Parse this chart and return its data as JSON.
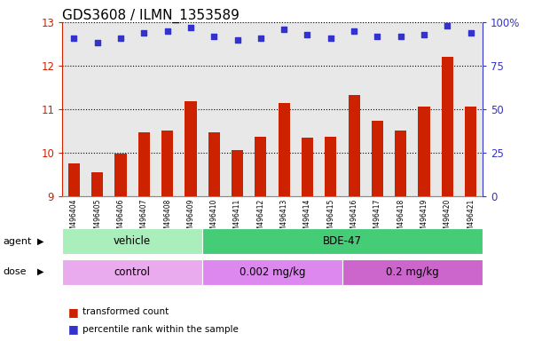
{
  "title": "GDS3608 / ILMN_1353589",
  "samples": [
    "GSM496404",
    "GSM496405",
    "GSM496406",
    "GSM496407",
    "GSM496408",
    "GSM496409",
    "GSM496410",
    "GSM496411",
    "GSM496412",
    "GSM496413",
    "GSM496414",
    "GSM496415",
    "GSM496416",
    "GSM496417",
    "GSM496418",
    "GSM496419",
    "GSM496420",
    "GSM496421"
  ],
  "bar_values": [
    9.75,
    9.55,
    9.98,
    10.47,
    10.5,
    11.18,
    10.47,
    10.05,
    10.37,
    11.15,
    10.35,
    10.37,
    11.32,
    10.73,
    10.5,
    11.05,
    12.2,
    11.05
  ],
  "percentile_values": [
    91,
    88,
    91,
    94,
    95,
    97,
    92,
    90,
    91,
    96,
    93,
    91,
    95,
    92,
    92,
    93,
    98,
    94
  ],
  "ylim_left": [
    9,
    13
  ],
  "ylim_right": [
    0,
    100
  ],
  "yticks_left": [
    9,
    10,
    11,
    12,
    13
  ],
  "yticks_right": [
    0,
    25,
    50,
    75,
    100
  ],
  "bar_color": "#CC2200",
  "dot_color": "#3333CC",
  "agent_groups": [
    {
      "label": "vehicle",
      "start": 0,
      "end": 6,
      "color": "#AAEEBB"
    },
    {
      "label": "BDE-47",
      "start": 6,
      "end": 18,
      "color": "#44CC77"
    }
  ],
  "dose_groups": [
    {
      "label": "control",
      "start": 0,
      "end": 6,
      "color": "#EAAAEE"
    },
    {
      "label": "0.002 mg/kg",
      "start": 6,
      "end": 12,
      "color": "#DD88EE"
    },
    {
      "label": "0.2 mg/kg",
      "start": 12,
      "end": 18,
      "color": "#CC66CC"
    }
  ],
  "legend_items": [
    {
      "label": "transformed count",
      "color": "#CC2200"
    },
    {
      "label": "percentile rank within the sample",
      "color": "#3333CC"
    }
  ],
  "background_color": "#E8E8E8",
  "title_fontsize": 11,
  "bar_width": 0.5
}
